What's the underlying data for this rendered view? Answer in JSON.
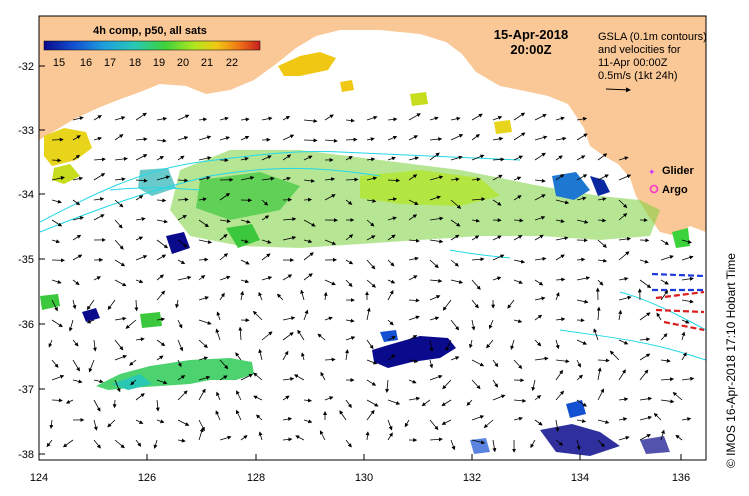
{
  "map": {
    "colorbar": {
      "title": "4h comp, p50, all sats",
      "ticks": [
        "15",
        "16",
        "17",
        "18",
        "19",
        "20",
        "21",
        "22"
      ],
      "colors": [
        "#0a0a8c",
        "#1450d2",
        "#1ea0dc",
        "#28c8b4",
        "#3cd23c",
        "#b4e61e",
        "#f0c814",
        "#f07814",
        "#c81e1e"
      ]
    },
    "date": "15-Apr-2018",
    "time": "20:00Z",
    "gsla_note": [
      "GSLA (0.1m contours)",
      "and velocities for",
      "11-Apr 00:00Z",
      "0.5m/s (1kt 24h)"
    ],
    "legend": {
      "glider": "Glider",
      "argo": "Argo",
      "glider_color": "#cc33ff",
      "argo_color": "#ff33cc"
    },
    "x_ticks": [
      "124",
      "126",
      "128",
      "130",
      "132",
      "134",
      "136"
    ],
    "y_ticks": [
      "-32",
      "-33",
      "-34",
      "-35",
      "-36",
      "-37",
      "-38"
    ],
    "side_credit": "© IMOS 16-Apr-2018 17:10 Hobart Time",
    "land_color": "#fac896"
  }
}
